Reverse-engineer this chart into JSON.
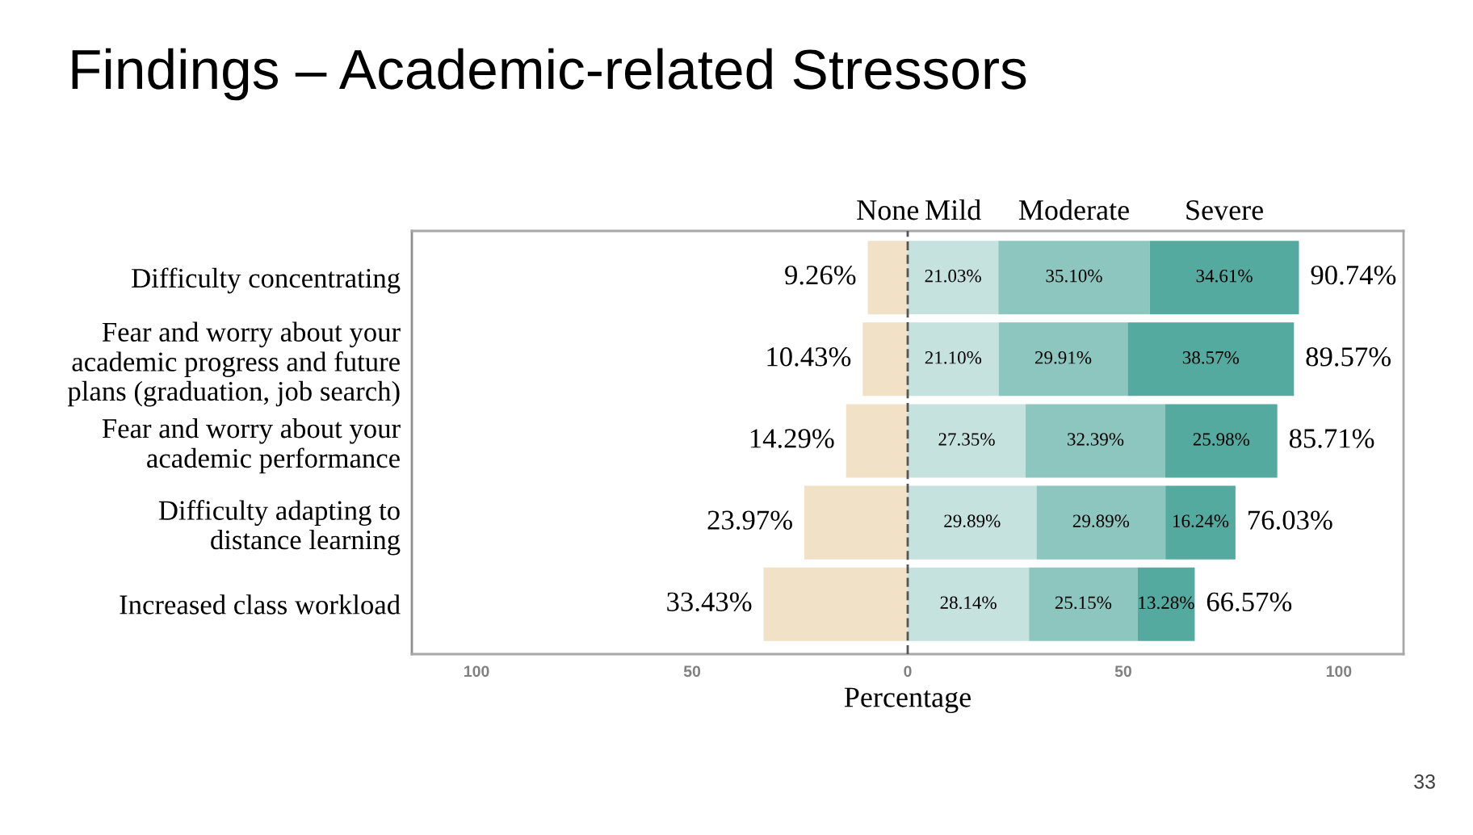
{
  "chart_data": {
    "type": "bar",
    "orientation": "horizontal",
    "stacked": true,
    "title": "Findings – Academic-related Stressors",
    "xlabel": "Percentage",
    "categories": [
      "Difficulty concentrating",
      "Fear and worry about your\nacademic progress and future\nplans (graduation, job search)",
      "Fear and worry about your\nacademic performance",
      "Difficulty adapting to\ndistance learning",
      "Increased class workload"
    ],
    "series": [
      {
        "name": "None",
        "color": "#f1e1c6",
        "values": [
          9.26,
          10.43,
          14.29,
          23.97,
          33.43
        ],
        "base": [
          -9.26,
          -10.43,
          -14.29,
          -23.97,
          -33.43
        ],
        "value_labels": [
          "9.26%",
          "10.43%",
          "14.29%",
          "23.97%",
          "33.43%"
        ]
      },
      {
        "name": "Mild",
        "color": "#c5e2df",
        "values": [
          21.03,
          21.1,
          27.35,
          29.89,
          28.14
        ],
        "value_labels": [
          "21.03%",
          "21.10%",
          "27.35%",
          "29.89%",
          "28.14%"
        ]
      },
      {
        "name": "Moderate",
        "color": "#8dc6be",
        "values": [
          35.1,
          29.91,
          32.39,
          29.89,
          25.15
        ],
        "value_labels": [
          "35.10%",
          "29.91%",
          "32.39%",
          "29.89%",
          "25.15%"
        ]
      },
      {
        "name": "Severe",
        "color": "#55aa9f",
        "values": [
          34.61,
          38.57,
          25.98,
          16.24,
          13.28
        ],
        "value_labels": [
          "34.61%",
          "38.57%",
          "25.98%",
          "16.24%",
          "13.28%"
        ]
      }
    ],
    "xlim": [
      -115,
      115
    ],
    "xticks": [
      {
        "value": -100,
        "label": "100"
      },
      {
        "value": -50,
        "label": "50"
      },
      0,
      50,
      100
    ],
    "ref_lines": [
      {
        "axis": "x",
        "value": 0,
        "color": "#555555",
        "line_style": "dashed"
      }
    ],
    "legend": "top",
    "annotations": [
      {
        "text": "90.74%",
        "x": 90.74,
        "y": "Difficulty concentrating"
      },
      {
        "text": "89.57%",
        "x": 89.57,
        "y": "Fear and worry about your\nacademic progress and future\nplans (graduation, job search)"
      },
      {
        "text": "85.71%",
        "x": 85.71,
        "y": "Fear and worry about your\nacademic performance"
      },
      {
        "text": "76.03%",
        "x": 76.03,
        "y": "Difficulty adapting to\ndistance learning"
      },
      {
        "text": "66.57%",
        "x": 66.57,
        "y": "Increased class workload"
      },
      "33"
    ]
  }
}
